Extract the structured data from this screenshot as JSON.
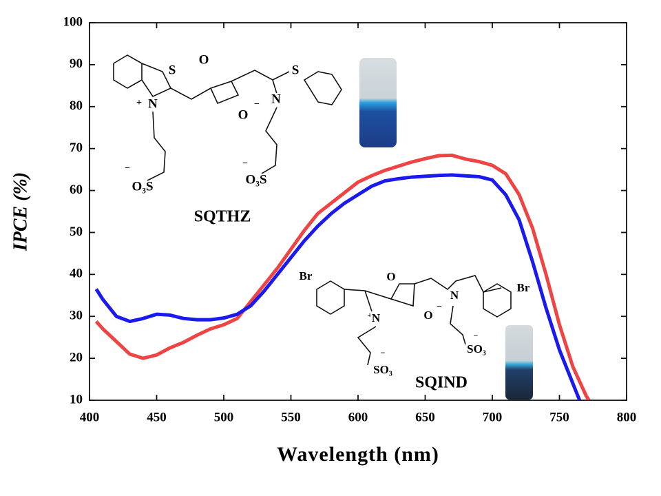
{
  "chart_data": {
    "type": "line",
    "x_label": "Wavelength (nm)",
    "y_label": "IPCE (%)",
    "xlim": [
      400,
      800
    ],
    "ylim": [
      10,
      100
    ],
    "xticks": [
      400,
      450,
      500,
      550,
      600,
      650,
      700,
      750,
      800
    ],
    "yticks": [
      10,
      20,
      30,
      40,
      50,
      60,
      70,
      80,
      90,
      100
    ],
    "series": [
      {
        "color": "#ee4444",
        "x": [
          405,
          410,
          420,
          430,
          440,
          450,
          460,
          470,
          480,
          490,
          500,
          510,
          520,
          530,
          540,
          550,
          560,
          570,
          580,
          590,
          600,
          610,
          620,
          630,
          640,
          650,
          660,
          670,
          680,
          690,
          700,
          710,
          720,
          730,
          740,
          750,
          760,
          770,
          772
        ],
        "values": [
          28.8,
          27,
          24,
          21,
          20,
          20.8,
          22.5,
          23.8,
          25.5,
          27,
          28,
          29.5,
          33.5,
          37.5,
          41.5,
          46,
          50.5,
          54.5,
          57,
          59.5,
          62,
          63.5,
          64.8,
          65.8,
          66.8,
          67.6,
          68.3,
          68.4,
          67.5,
          66.9,
          66,
          64,
          59,
          51,
          40,
          28,
          18,
          11,
          10
        ]
      },
      {
        "color": "#1a1aee",
        "x": [
          405,
          410,
          420,
          430,
          440,
          450,
          460,
          470,
          480,
          490,
          500,
          510,
          520,
          530,
          540,
          550,
          560,
          570,
          580,
          590,
          600,
          610,
          620,
          630,
          640,
          650,
          660,
          670,
          680,
          690,
          700,
          710,
          720,
          730,
          740,
          750,
          760,
          765
        ],
        "values": [
          36.5,
          34,
          30,
          28.8,
          29.5,
          30.5,
          30.3,
          29.5,
          29.2,
          29.2,
          29.6,
          30.5,
          32.5,
          36,
          40,
          44,
          48,
          51.5,
          54.5,
          57,
          59,
          61,
          62.3,
          62.8,
          63.2,
          63.4,
          63.6,
          63.7,
          63.5,
          63.3,
          62.5,
          59,
          53,
          43,
          32,
          22,
          14,
          10
        ]
      }
    ],
    "annotations": [
      "SQTHZ",
      "SQIND"
    ],
    "structure_labels": [
      [
        "S",
        "+",
        "N",
        "O",
        "O",
        "−",
        "S",
        "N",
        "−",
        "O₃S",
        "−",
        "O₃S"
      ],
      [
        "Br",
        "+",
        "N",
        "O",
        "O",
        "−",
        "N",
        "Br",
        "−",
        "SO₃",
        "−",
        "SO₃"
      ]
    ]
  }
}
